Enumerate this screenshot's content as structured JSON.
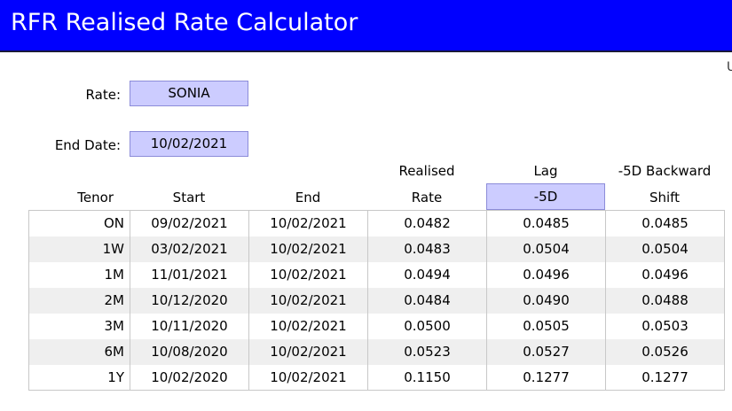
{
  "app": {
    "title": "RFR Realised Rate Calculator",
    "edge_glyph": "U"
  },
  "inputs": {
    "rate_label": "Rate:",
    "rate_value": "SONIA",
    "end_date_label": "End Date:",
    "end_date_value": "10/02/2021"
  },
  "headers": {
    "tenor": "Tenor",
    "start": "Start",
    "end": "End",
    "realised_line1": "Realised",
    "realised_line2": "Rate",
    "lag_line1": "Lag",
    "lag_line2": "-5D",
    "shift_line1": "-5D Backward",
    "shift_line2": "Shift"
  },
  "colors": {
    "title_bar": "#0000ff",
    "input_fill": "#ccccff",
    "alt_row": "#efefef"
  },
  "rows": [
    {
      "tenor": "ON",
      "start": "09/02/2021",
      "end": "10/02/2021",
      "realised": "0.0482",
      "lag": "0.0485",
      "shift": "0.0485"
    },
    {
      "tenor": "1W",
      "start": "03/02/2021",
      "end": "10/02/2021",
      "realised": "0.0483",
      "lag": "0.0504",
      "shift": "0.0504"
    },
    {
      "tenor": "1M",
      "start": "11/01/2021",
      "end": "10/02/2021",
      "realised": "0.0494",
      "lag": "0.0496",
      "shift": "0.0496"
    },
    {
      "tenor": "2M",
      "start": "10/12/2020",
      "end": "10/02/2021",
      "realised": "0.0484",
      "lag": "0.0490",
      "shift": "0.0488"
    },
    {
      "tenor": "3M",
      "start": "10/11/2020",
      "end": "10/02/2021",
      "realised": "0.0500",
      "lag": "0.0505",
      "shift": "0.0503"
    },
    {
      "tenor": "6M",
      "start": "10/08/2020",
      "end": "10/02/2021",
      "realised": "0.0523",
      "lag": "0.0527",
      "shift": "0.0526"
    },
    {
      "tenor": "1Y",
      "start": "10/02/2020",
      "end": "10/02/2021",
      "realised": "0.1150",
      "lag": "0.1277",
      "shift": "0.1277"
    }
  ]
}
